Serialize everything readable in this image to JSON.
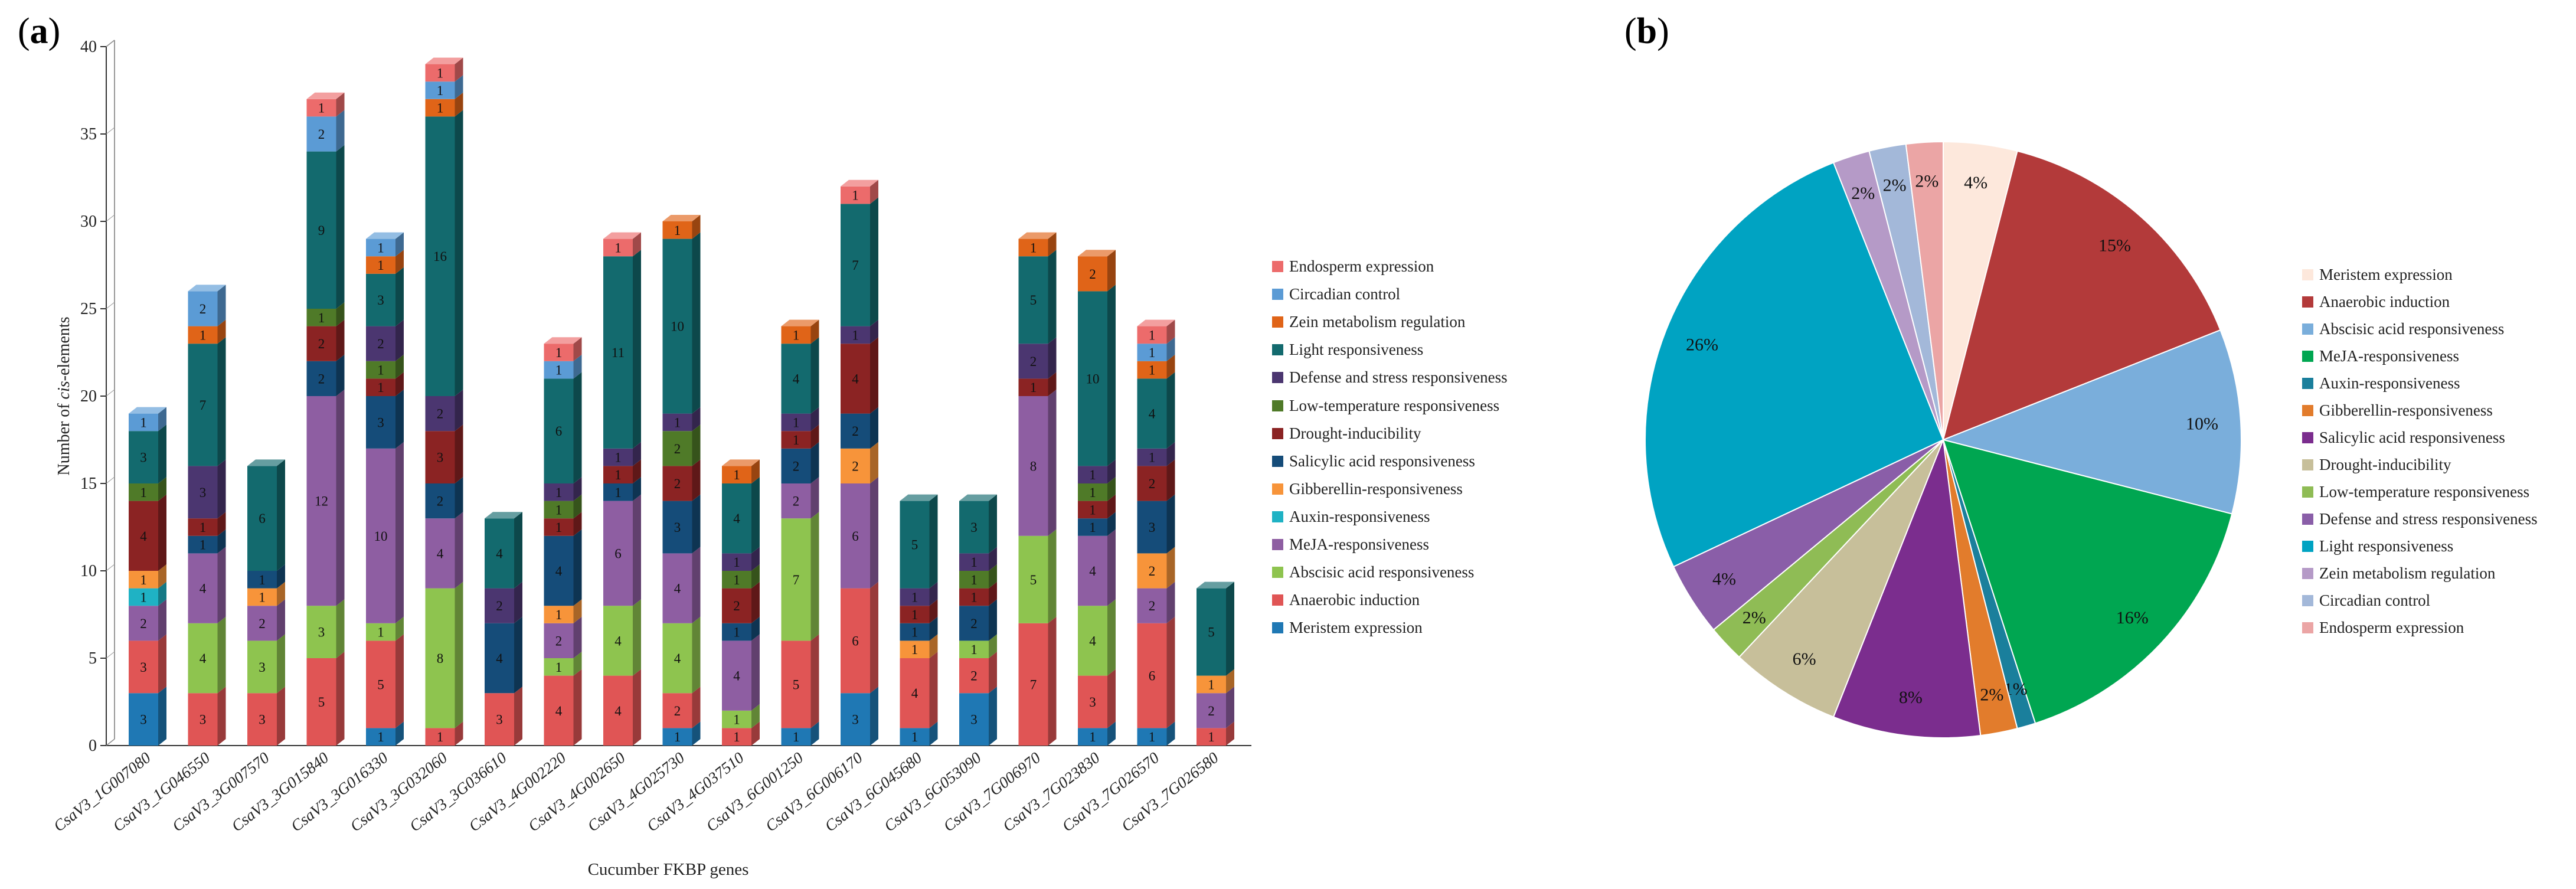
{
  "panel_a_label": "a",
  "panel_b_label": "b",
  "chart_data": [
    {
      "type": "bar",
      "stacked": true,
      "title": "",
      "xlabel": "Cucumber FKBP genes",
      "ylabel_pre": "Number of ",
      "ylabel_italic": "cis",
      "ylabel_post": "-elements",
      "ylim": [
        0,
        40
      ],
      "yticks": [
        0,
        5,
        10,
        15,
        20,
        25,
        30,
        35,
        40
      ],
      "legend_position": "right",
      "categories": [
        "CsaV3_1G007080",
        "CsaV3_1G046550",
        "CsaV3_3G007570",
        "CsaV3_3G015840",
        "CsaV3_3G016330",
        "CsaV3_3G032060",
        "CsaV3_3G036610",
        "CsaV3_4G002220",
        "CsaV3_4G002650",
        "CsaV3_4G025730",
        "CsaV3_4G037510",
        "CsaV3_6G001250",
        "CsaV3_6G006170",
        "CsaV3_6G045680",
        "CsaV3_6G053090",
        "CsaV3_7G006970",
        "CsaV3_7G023830",
        "CsaV3_7G026570",
        "CsaV3_7G026580"
      ],
      "series": [
        {
          "name": "Meristem expression",
          "color": "#1f78b4",
          "values": [
            3,
            0,
            0,
            0,
            1,
            0,
            0,
            0,
            0,
            1,
            0,
            1,
            3,
            1,
            3,
            0,
            1,
            1,
            0
          ]
        },
        {
          "name": "Anaerobic induction",
          "color": "#e05555",
          "values": [
            3,
            3,
            3,
            5,
            5,
            1,
            3,
            4,
            4,
            2,
            1,
            5,
            6,
            4,
            2,
            7,
            3,
            6,
            1
          ]
        },
        {
          "name": "Abscisic acid responsiveness",
          "color": "#8ec44f",
          "values": [
            0,
            4,
            3,
            3,
            1,
            8,
            0,
            1,
            4,
            4,
            1,
            7,
            0,
            0,
            1,
            5,
            4,
            0,
            0
          ]
        },
        {
          "name": "MeJA-responsiveness",
          "color": "#8e5ea2",
          "values": [
            2,
            4,
            2,
            12,
            10,
            4,
            0,
            2,
            6,
            4,
            4,
            2,
            6,
            0,
            0,
            8,
            4,
            2,
            2
          ]
        },
        {
          "name": "Auxin-responsiveness",
          "color": "#1fb2c4",
          "values": [
            1,
            0,
            0,
            0,
            0,
            0,
            0,
            0,
            0,
            0,
            0,
            0,
            0,
            0,
            0,
            0,
            0,
            0,
            0
          ]
        },
        {
          "name": "Gibberellin-responsiveness",
          "color": "#f7943a",
          "values": [
            1,
            0,
            1,
            0,
            0,
            0,
            0,
            1,
            0,
            0,
            0,
            0,
            2,
            1,
            0,
            0,
            0,
            2,
            1
          ]
        },
        {
          "name": "Salicylic acid responsiveness",
          "color": "#154c79",
          "values": [
            0,
            1,
            1,
            2,
            3,
            2,
            4,
            4,
            1,
            3,
            1,
            2,
            2,
            1,
            2,
            0,
            1,
            3,
            0
          ]
        },
        {
          "name": "Drought-inducibility",
          "color": "#8b2323",
          "values": [
            4,
            1,
            0,
            2,
            1,
            3,
            0,
            1,
            1,
            2,
            2,
            1,
            4,
            1,
            1,
            1,
            1,
            2,
            0
          ]
        },
        {
          "name": "Low-temperature responsiveness",
          "color": "#4f7a28",
          "values": [
            1,
            0,
            0,
            1,
            1,
            0,
            0,
            1,
            0,
            2,
            1,
            0,
            0,
            0,
            1,
            0,
            1,
            0,
            0
          ]
        },
        {
          "name": "Defense and stress responsiveness",
          "color": "#4b3670",
          "values": [
            0,
            3,
            0,
            0,
            2,
            2,
            2,
            1,
            1,
            1,
            1,
            1,
            1,
            1,
            1,
            2,
            1,
            1,
            0
          ]
        },
        {
          "name": "Light responsiveness",
          "color": "#136a6e",
          "values": [
            3,
            7,
            6,
            9,
            3,
            16,
            4,
            6,
            11,
            10,
            4,
            4,
            7,
            5,
            3,
            5,
            10,
            4,
            5
          ]
        },
        {
          "name": "Zein metabolism regulation",
          "color": "#e06418",
          "values": [
            0,
            1,
            0,
            0,
            1,
            1,
            0,
            0,
            0,
            1,
            1,
            1,
            0,
            0,
            0,
            1,
            2,
            1,
            0
          ]
        },
        {
          "name": "Circadian control",
          "color": "#5b9bd5",
          "values": [
            1,
            2,
            0,
            2,
            1,
            1,
            0,
            1,
            0,
            0,
            0,
            0,
            0,
            0,
            0,
            0,
            0,
            1,
            0
          ]
        },
        {
          "name": "Endosperm expression",
          "color": "#ec6b6b",
          "values": [
            0,
            0,
            0,
            1,
            0,
            1,
            0,
            1,
            1,
            0,
            0,
            0,
            1,
            0,
            0,
            0,
            0,
            1,
            0
          ]
        }
      ]
    },
    {
      "type": "pie",
      "title": "",
      "legend_position": "right",
      "labels": [
        "Meristem expression",
        "Anaerobic induction",
        "Abscisic acid responsiveness",
        "MeJA-responsiveness",
        "Auxin-responsiveness",
        "Gibberellin-responsiveness",
        "Salicylic acid responsiveness",
        "Drought-inducibility",
        "Low-temperature responsiveness",
        "Defense and stress responsiveness",
        "Light responsiveness",
        "Zein metabolism regulation",
        "Circadian control",
        "Endosperm expression"
      ],
      "values": [
        4,
        15,
        10,
        16,
        1,
        2,
        8,
        6,
        2,
        4,
        26,
        2,
        2,
        2
      ],
      "value_labels": [
        "4%",
        "15%",
        "10%",
        "16%",
        "1%",
        "2%",
        "8%",
        "6%",
        "2%",
        "4%",
        "26%",
        "2%",
        "2%",
        "2%"
      ],
      "colors": [
        "#fde8dc",
        "#b33a3a",
        "#7aaedb",
        "#00a651",
        "#1a7f9c",
        "#e27c2c",
        "#7b2d8e",
        "#c7bf9a",
        "#8fbc55",
        "#8a5ea8",
        "#00a3c2",
        "#b59ac7",
        "#a3b8d9",
        "#eba5a5"
      ]
    }
  ]
}
